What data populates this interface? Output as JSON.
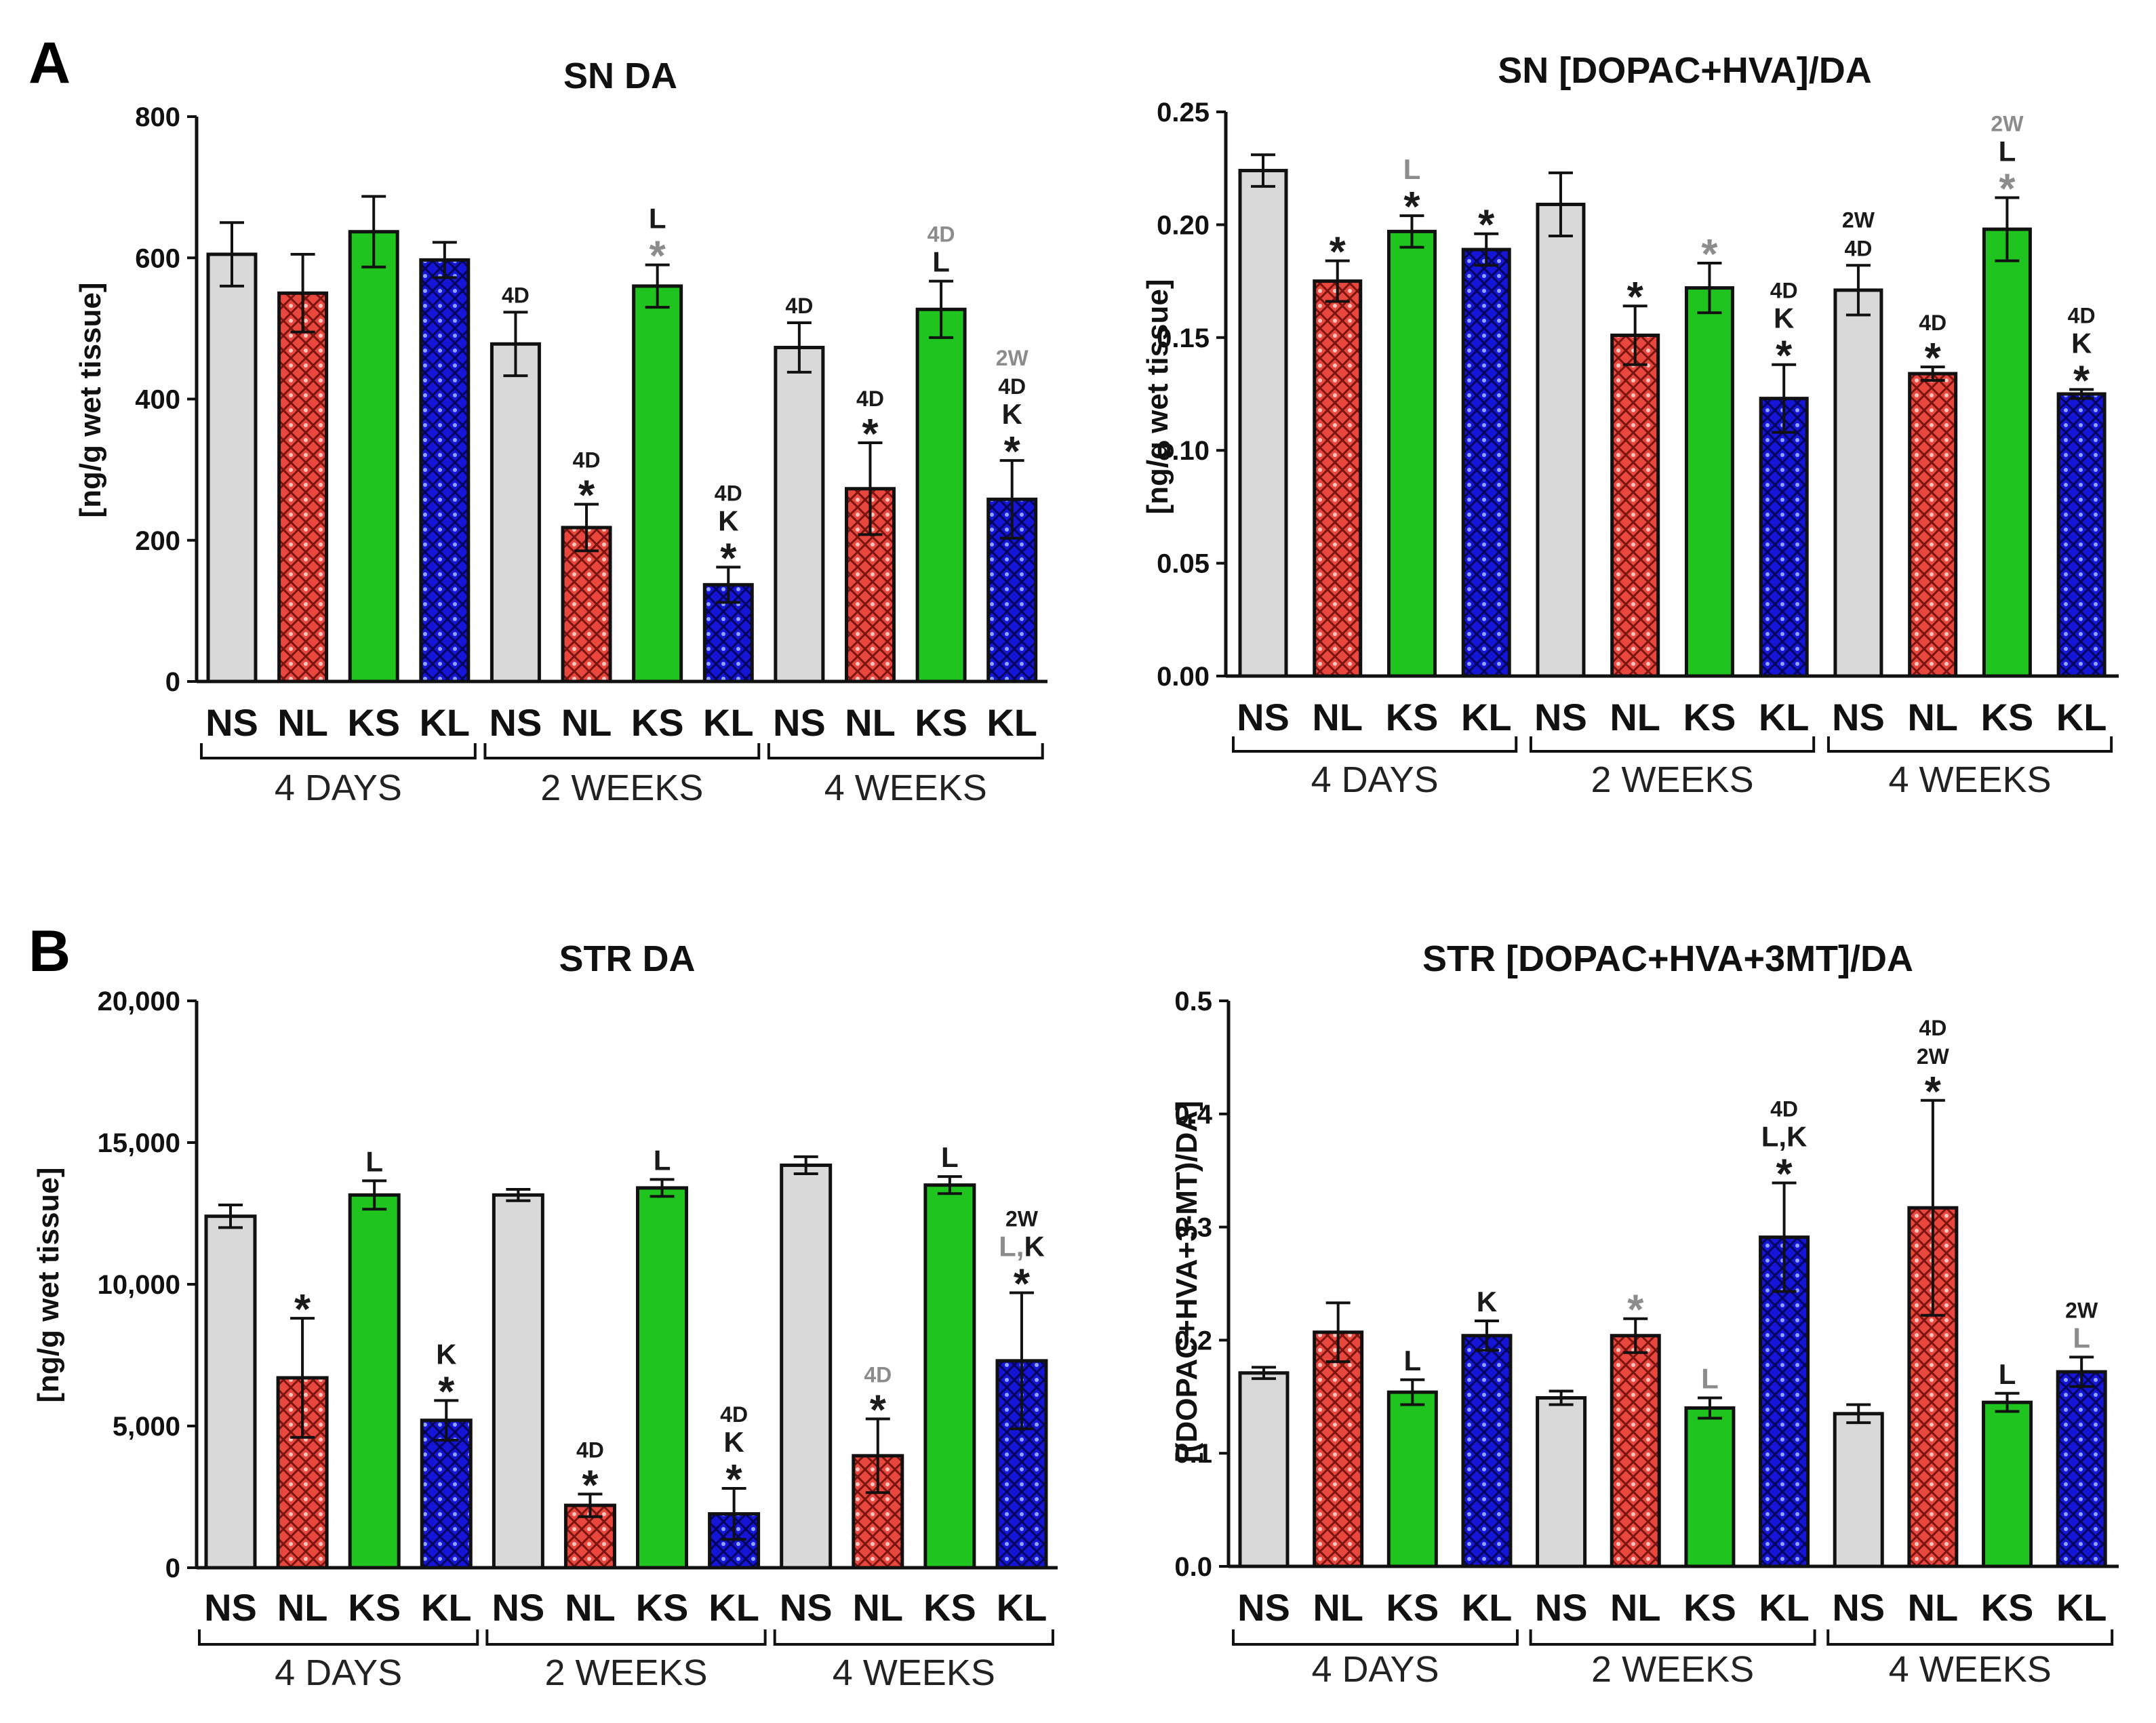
{
  "panel_labels": [
    "A",
    "B"
  ],
  "colors": {
    "NS": "#d9d9d9",
    "NL": "#e8473e",
    "KS": "#1fc41f",
    "KL": "#1515d8",
    "annotation_black": "#1a1a1a",
    "annotation_gray": "#8c8c8c"
  },
  "chart_data": [
    {
      "type": "bar",
      "panel": "A",
      "title": "SN DA",
      "ylabel": "[ng/g wet tissue]",
      "xlabel": "",
      "ylim": [
        0,
        800
      ],
      "yticks": [
        "0",
        "200",
        "400",
        "600",
        "800"
      ],
      "yticks_values": [
        0,
        200,
        400,
        600,
        800
      ],
      "categories": [
        "NS",
        "NL",
        "KS",
        "KL",
        "NS",
        "NL",
        "KS",
        "KL",
        "NS",
        "NL",
        "KS",
        "KL"
      ],
      "groups": [
        "4 DAYS",
        "2 WEEKS",
        "4 WEEKS"
      ],
      "values": [
        605,
        550,
        637,
        597,
        478,
        218,
        560,
        137,
        473,
        273,
        527,
        258
      ],
      "errors": [
        45,
        55,
        50,
        25,
        45,
        33,
        30,
        25,
        35,
        65,
        40,
        55
      ],
      "annotations": [
        [],
        [],
        [],
        [],
        [
          {
            "t": "4D",
            "c": "black"
          }
        ],
        [
          {
            "t": "4D",
            "c": "black"
          },
          {
            "t": "*",
            "c": "black"
          }
        ],
        [
          {
            "t": "L",
            "c": "black"
          },
          {
            "t": "*",
            "c": "gray"
          }
        ],
        [
          {
            "t": "4D",
            "c": "black"
          },
          {
            "t": "K",
            "c": "black"
          },
          {
            "t": "*",
            "c": "black"
          }
        ],
        [
          {
            "t": "4D",
            "c": "black"
          }
        ],
        [
          {
            "t": "4D",
            "c": "black"
          },
          {
            "t": "*",
            "c": "black"
          }
        ],
        [
          {
            "t": "4D",
            "c": "gray"
          },
          {
            "t": "L",
            "c": "black"
          }
        ],
        [
          {
            "t": "2W",
            "c": "gray"
          },
          {
            "t": "4D",
            "c": "black"
          },
          {
            "t": "K",
            "c": "black"
          },
          {
            "t": "*",
            "c": "black"
          }
        ]
      ]
    },
    {
      "type": "bar",
      "panel": "",
      "title": "SN [DOPAC+HVA]/DA",
      "ylabel": "[ng/g wet tissue]",
      "xlabel": "",
      "ylim": [
        0,
        0.25
      ],
      "yticks": [
        "0.00",
        "0.05",
        "0.10",
        "0.15",
        "0.20",
        "0.25"
      ],
      "yticks_values": [
        0,
        0.05,
        0.1,
        0.15,
        0.2,
        0.25
      ],
      "categories": [
        "NS",
        "NL",
        "KS",
        "KL",
        "NS",
        "NL",
        "KS",
        "KL",
        "NS",
        "NL",
        "KS",
        "KL"
      ],
      "groups": [
        "4 DAYS",
        "2 WEEKS",
        "4 WEEKS"
      ],
      "values": [
        0.224,
        0.175,
        0.197,
        0.189,
        0.209,
        0.151,
        0.172,
        0.123,
        0.171,
        0.134,
        0.198,
        0.125
      ],
      "errors": [
        0.007,
        0.009,
        0.007,
        0.007,
        0.014,
        0.013,
        0.011,
        0.015,
        0.011,
        0.003,
        0.014,
        0.002
      ],
      "annotations": [
        [],
        [
          {
            "t": "*",
            "c": "black"
          }
        ],
        [
          {
            "t": "L",
            "c": "gray"
          },
          {
            "t": "*",
            "c": "black"
          }
        ],
        [
          {
            "t": "*",
            "c": "black"
          }
        ],
        [],
        [
          {
            "t": "*",
            "c": "black"
          }
        ],
        [
          {
            "t": "*",
            "c": "gray"
          }
        ],
        [
          {
            "t": "4D",
            "c": "black"
          },
          {
            "t": "K",
            "c": "black"
          },
          {
            "t": "*",
            "c": "black"
          }
        ],
        [
          {
            "t": "2W",
            "c": "black"
          },
          {
            "t": "4D",
            "c": "black"
          }
        ],
        [
          {
            "t": "4D",
            "c": "black"
          },
          {
            "t": "*",
            "c": "black"
          }
        ],
        [
          {
            "t": "2W",
            "c": "gray"
          },
          {
            "t": "L",
            "c": "black"
          },
          {
            "t": "*",
            "c": "gray"
          }
        ],
        [
          {
            "t": "4D",
            "c": "black"
          },
          {
            "t": "K",
            "c": "black"
          },
          {
            "t": "*",
            "c": "black"
          }
        ]
      ]
    },
    {
      "type": "bar",
      "panel": "B",
      "title": "STR DA",
      "ylabel": "[ng/g wet tissue]",
      "xlabel": "",
      "ylim": [
        0,
        20000
      ],
      "yticks": [
        "0",
        "5,000",
        "10,000",
        "15,000",
        "20,000"
      ],
      "yticks_values": [
        0,
        5000,
        10000,
        15000,
        20000
      ],
      "categories": [
        "NS",
        "NL",
        "KS",
        "KL",
        "NS",
        "NL",
        "KS",
        "KL",
        "NS",
        "NL",
        "KS",
        "KL"
      ],
      "groups": [
        "4 DAYS",
        "2 WEEKS",
        "4 WEEKS"
      ],
      "values": [
        12400,
        6700,
        13150,
        5200,
        13150,
        2200,
        13400,
        1900,
        14200,
        3950,
        13500,
        7300
      ],
      "errors": [
        400,
        2100,
        500,
        700,
        200,
        400,
        300,
        900,
        300,
        1300,
        300,
        2400
      ],
      "annotations": [
        [],
        [
          {
            "t": "*",
            "c": "black"
          }
        ],
        [
          {
            "t": "L",
            "c": "black"
          }
        ],
        [
          {
            "t": "K",
            "c": "black"
          },
          {
            "t": "*",
            "c": "black"
          }
        ],
        [],
        [
          {
            "t": "4D",
            "c": "black"
          },
          {
            "t": "*",
            "c": "black"
          }
        ],
        [
          {
            "t": "L",
            "c": "black"
          }
        ],
        [
          {
            "t": "4D",
            "c": "black"
          },
          {
            "t": "K",
            "c": "black"
          },
          {
            "t": "*",
            "c": "black"
          }
        ],
        [],
        [
          {
            "t": "4D",
            "c": "gray"
          },
          {
            "t": "*",
            "c": "black"
          }
        ],
        [
          {
            "t": "L",
            "c": "black"
          }
        ],
        [
          {
            "t": "2W",
            "c": "black"
          },
          {
            "t": "L,K",
            "c": "mixed"
          },
          {
            "t": "*",
            "c": "black"
          }
        ]
      ]
    },
    {
      "type": "bar",
      "panel": "",
      "title": "STR [DOPAC+HVA+3MT]/DA",
      "ylabel": "[(DOPAC+HVA+3-MT)/DA]",
      "xlabel": "",
      "ylim": [
        0,
        0.5
      ],
      "yticks": [
        "0.0",
        "0.1",
        "0.2",
        "0.3",
        "0.4",
        "0.5"
      ],
      "yticks_values": [
        0,
        0.1,
        0.2,
        0.3,
        0.4,
        0.5
      ],
      "categories": [
        "NS",
        "NL",
        "KS",
        "KL",
        "NS",
        "NL",
        "KS",
        "KL",
        "NS",
        "NL",
        "KS",
        "KL"
      ],
      "groups": [
        "4 DAYS",
        "2 WEEKS",
        "4 WEEKS"
      ],
      "values": [
        0.171,
        0.207,
        0.154,
        0.204,
        0.149,
        0.204,
        0.14,
        0.291,
        0.135,
        0.317,
        0.145,
        0.172
      ],
      "errors": [
        0.005,
        0.026,
        0.011,
        0.013,
        0.006,
        0.015,
        0.009,
        0.048,
        0.008,
        0.095,
        0.008,
        0.013
      ],
      "annotations": [
        [],
        [],
        [
          {
            "t": "L",
            "c": "black"
          }
        ],
        [
          {
            "t": "K",
            "c": "black"
          }
        ],
        [],
        [
          {
            "t": "*",
            "c": "gray"
          }
        ],
        [
          {
            "t": "L",
            "c": "gray"
          }
        ],
        [
          {
            "t": "4D",
            "c": "black"
          },
          {
            "t": "L,K",
            "c": "black"
          },
          {
            "t": "*",
            "c": "black"
          }
        ],
        [],
        [
          {
            "t": "4D",
            "c": "black"
          },
          {
            "t": "2W",
            "c": "black"
          },
          {
            "t": "*",
            "c": "black"
          }
        ],
        [
          {
            "t": "L",
            "c": "black"
          }
        ],
        [
          {
            "t": "2W",
            "c": "black"
          },
          {
            "t": "L",
            "c": "gray"
          }
        ]
      ]
    }
  ]
}
